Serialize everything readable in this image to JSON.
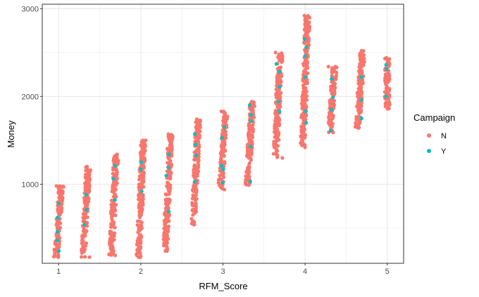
{
  "chart_data": {
    "type": "scatter",
    "title": "",
    "xlabel": "RFM_Score",
    "ylabel": "Money",
    "xlim": [
      0.8,
      5.2
    ],
    "ylim": [
      100,
      3050
    ],
    "x_ticks": [
      1,
      2,
      3,
      4,
      5
    ],
    "y_ticks": [
      1000,
      2000,
      3000
    ],
    "grid": true,
    "legend": {
      "title": "Campaign",
      "placement": "right",
      "entries": [
        {
          "label": "N",
          "color": "#F8766D"
        },
        {
          "label": "Y",
          "color": "#00BFC4"
        }
      ]
    },
    "series": [
      {
        "name": "N",
        "color": "#F8766D",
        "columns": [
          {
            "x": 1.0,
            "min": 170,
            "max": 980
          },
          {
            "x": 1.33,
            "min": 170,
            "max": 1200
          },
          {
            "x": 1.67,
            "min": 190,
            "max": 1340
          },
          {
            "x": 2.0,
            "min": 170,
            "max": 1500
          },
          {
            "x": 2.33,
            "min": 240,
            "max": 1570
          },
          {
            "x": 2.67,
            "min": 540,
            "max": 1740
          },
          {
            "x": 3.0,
            "min": 940,
            "max": 1830
          },
          {
            "x": 3.33,
            "min": 990,
            "max": 1940
          },
          {
            "x": 3.67,
            "min": 1300,
            "max": 2500
          },
          {
            "x": 4.0,
            "min": 1420,
            "max": 2920
          },
          {
            "x": 4.33,
            "min": 1590,
            "max": 2340
          },
          {
            "x": 4.67,
            "min": 1640,
            "max": 2520
          },
          {
            "x": 5.0,
            "min": 1860,
            "max": 2440
          }
        ]
      },
      {
        "name": "Y",
        "color": "#00BFC4",
        "points": [
          [
            1.0,
            780
          ],
          [
            1.0,
            240
          ],
          [
            1.0,
            620
          ],
          [
            1.0,
            460
          ],
          [
            1.0,
            360
          ],
          [
            1.33,
            880
          ],
          [
            1.33,
            710
          ],
          [
            1.33,
            540
          ],
          [
            1.67,
            1210
          ],
          [
            1.67,
            1060
          ],
          [
            1.67,
            820
          ],
          [
            2.0,
            1250
          ],
          [
            2.0,
            1170
          ],
          [
            2.0,
            920
          ],
          [
            2.33,
            1340
          ],
          [
            2.33,
            1190
          ],
          [
            2.33,
            1100
          ],
          [
            2.33,
            690
          ],
          [
            2.67,
            1570
          ],
          [
            2.67,
            1450
          ],
          [
            2.67,
            1330
          ],
          [
            2.67,
            1030
          ],
          [
            3.0,
            1650
          ],
          [
            3.0,
            1530
          ],
          [
            3.0,
            1210
          ],
          [
            3.0,
            1170
          ],
          [
            3.0,
            1020
          ],
          [
            3.33,
            1900
          ],
          [
            3.33,
            1790
          ],
          [
            3.33,
            1720
          ],
          [
            3.33,
            1430
          ],
          [
            3.33,
            1030
          ],
          [
            3.67,
            2370
          ],
          [
            3.67,
            2280
          ],
          [
            3.67,
            2110
          ],
          [
            3.67,
            1940
          ],
          [
            3.67,
            1830
          ],
          [
            4.0,
            2650
          ],
          [
            4.0,
            2560
          ],
          [
            4.0,
            2460
          ],
          [
            4.0,
            2220
          ],
          [
            4.0,
            1830
          ],
          [
            4.0,
            1700
          ],
          [
            4.33,
            2200
          ],
          [
            4.33,
            1990
          ],
          [
            4.33,
            1850
          ],
          [
            4.33,
            1610
          ],
          [
            4.67,
            2220
          ],
          [
            4.67,
            1960
          ],
          [
            4.67,
            1750
          ],
          [
            5.0,
            2360
          ],
          [
            5.0,
            2310
          ],
          [
            5.0,
            2000
          ]
        ]
      }
    ]
  }
}
